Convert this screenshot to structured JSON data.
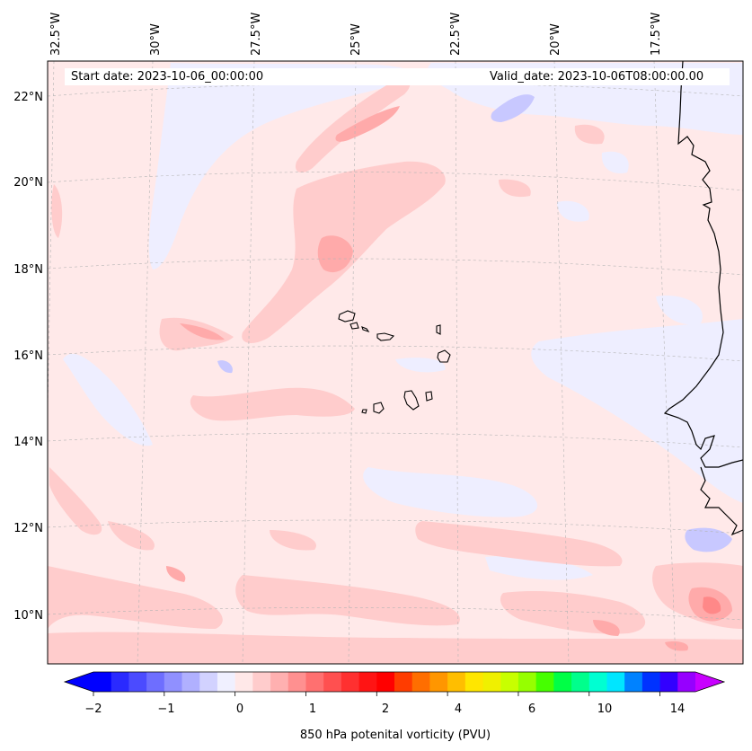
{
  "map": {
    "start_label": "Start date: 2023-10-06_00:00:00",
    "valid_label": "Valid_date: 2023-10-06T08:00:00.00",
    "lon_labels": [
      "32.5°W",
      "30°W",
      "27.5°W",
      "25°W",
      "22.5°W",
      "20°W",
      "17.5°W"
    ],
    "lat_labels": [
      "22°N",
      "20°N",
      "18°N",
      "16°N",
      "14°N",
      "12°N",
      "10°N"
    ]
  },
  "colorbar": {
    "label": "850 hPa potenital vorticity (PVU)",
    "tick_labels": [
      "−2",
      "−1",
      "0",
      "1",
      "2",
      "4",
      "6",
      "10",
      "14"
    ],
    "colors": [
      "#0000ff",
      "#2a2aff",
      "#4b4bff",
      "#6e6eff",
      "#9090ff",
      "#b0b0ff",
      "#d2d2ff",
      "#f0f0ff",
      "#ffe8e8",
      "#ffcccc",
      "#ffb0b0",
      "#ff9090",
      "#ff7070",
      "#ff5050",
      "#ff3030",
      "#ff1414",
      "#ff0000",
      "#ff3c00",
      "#ff6e00",
      "#ff9600",
      "#ffbe00",
      "#ffe600",
      "#f0f000",
      "#c8ff00",
      "#96ff00",
      "#46ff00",
      "#00ff46",
      "#00ff8c",
      "#00ffd2",
      "#00e6ff",
      "#0082ff",
      "#0032ff",
      "#3200ff",
      "#9600ff"
    ],
    "under_color": "#0000ff",
    "over_color": "#c800ff"
  },
  "colors": {
    "background_field": "#ffe9e9",
    "negative_light": "#eeeeff",
    "positive_light": "#ffcccc",
    "positive_mid": "#ffaaaa",
    "negative_mid": "#c8c8ff",
    "coastline": "#000000"
  }
}
